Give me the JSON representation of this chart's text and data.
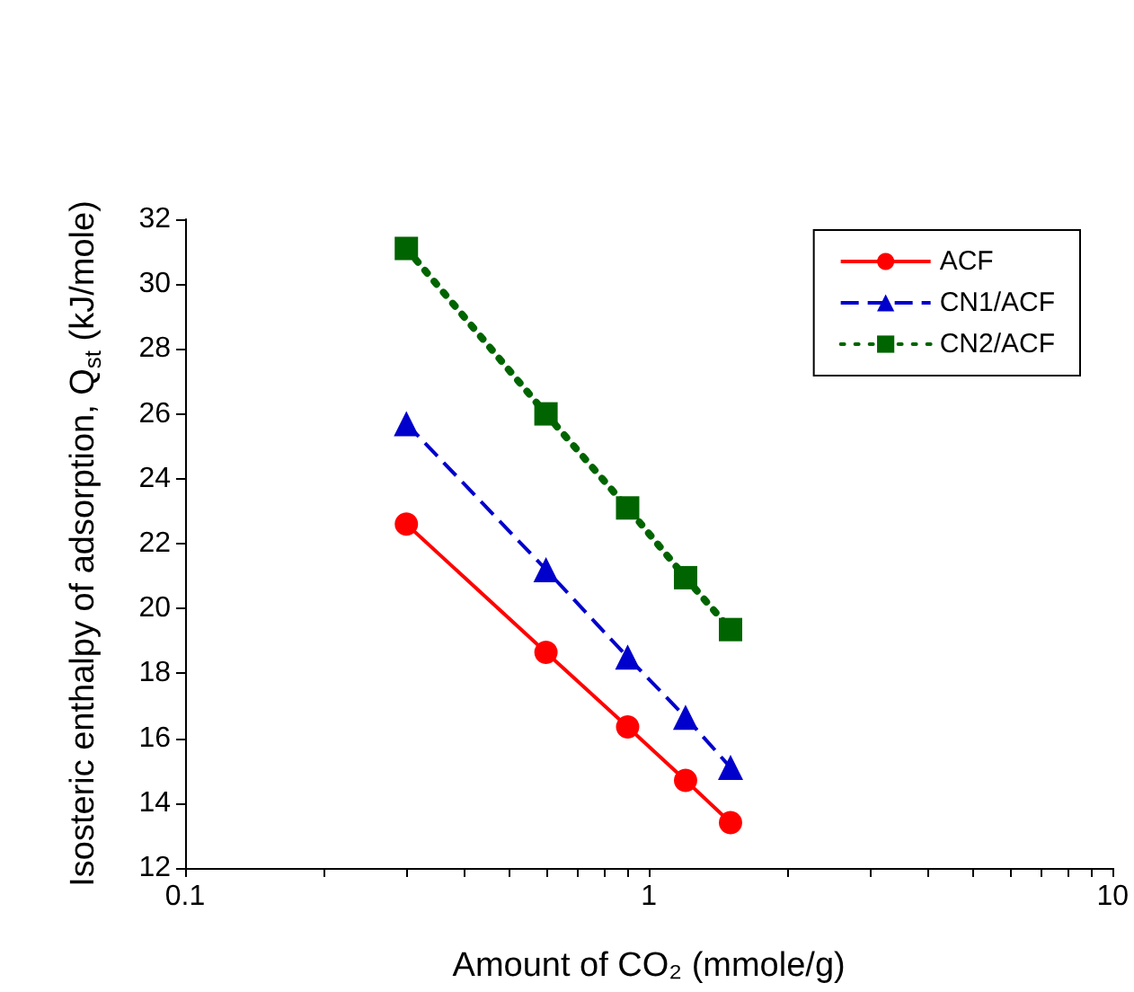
{
  "chart_data": {
    "type": "line",
    "xlabel": "Amount of CO₂ (mmole/g)",
    "ylabel": "Isosteric enthalpy of adsorption, Q$_{st}$ (kJ/mole)",
    "x": [
      0.3,
      0.6,
      0.9,
      1.2,
      1.5
    ],
    "series": [
      {
        "name": "ACF",
        "color": "#ff0000",
        "marker": "circle",
        "line_style": "solid",
        "values": [
          22.6,
          18.65,
          16.35,
          14.7,
          13.4
        ]
      },
      {
        "name": "CN1/ACF",
        "color": "#0000cc",
        "marker": "triangle",
        "line_style": "dashed",
        "values": [
          25.7,
          21.2,
          18.5,
          16.65,
          15.1
        ]
      },
      {
        "name": "CN2/ACF",
        "color": "#006400",
        "marker": "square",
        "line_style": "dotted",
        "values": [
          31.1,
          26.0,
          23.1,
          20.95,
          19.35
        ]
      }
    ],
    "log": "x",
    "xlim": [
      0.1,
      10
    ],
    "xticks": [
      0.1,
      {
        "value": 0.2,
        "label": null
      },
      {
        "value": 0.3,
        "label": null
      },
      {
        "value": 0.4,
        "label": null
      },
      {
        "value": 0.5,
        "label": null
      },
      {
        "value": 0.6,
        "label": null
      },
      {
        "value": 0.7,
        "label": null
      },
      {
        "value": 0.8,
        "label": null
      },
      {
        "value": 0.9,
        "label": null
      },
      1,
      {
        "value": 2,
        "label": null
      },
      {
        "value": 3,
        "label": null
      },
      {
        "value": 4,
        "label": null
      },
      {
        "value": 5,
        "label": null
      },
      {
        "value": 6,
        "label": null
      },
      {
        "value": 7,
        "label": null
      },
      {
        "value": 8,
        "label": null
      },
      {
        "value": 9,
        "label": null
      },
      10
    ],
    "ylim": [
      12,
      32
    ],
    "yticks": [
      12,
      14,
      16,
      18,
      20,
      22,
      24,
      26,
      28,
      30,
      32
    ],
    "grid": false,
    "legend": "top right"
  }
}
